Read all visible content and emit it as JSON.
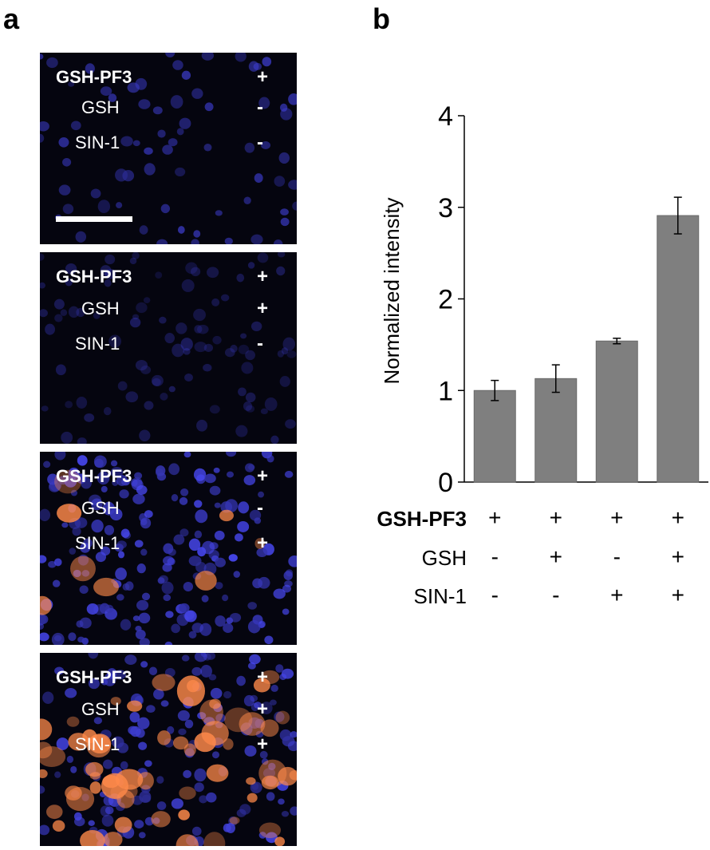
{
  "panel_labels": {
    "a": "a",
    "b": "b"
  },
  "micrographs": [
    {
      "rows": [
        {
          "label": "GSH-PF3",
          "sign": "+"
        },
        {
          "label": "GSH",
          "sign": "-"
        },
        {
          "label": "SIN-1",
          "sign": "-"
        }
      ],
      "scale_bar": true
    },
    {
      "rows": [
        {
          "label": "GSH-PF3",
          "sign": "+"
        },
        {
          "label": "GSH",
          "sign": "+"
        },
        {
          "label": "SIN-1",
          "sign": "-"
        }
      ],
      "scale_bar": false
    },
    {
      "rows": [
        {
          "label": "GSH-PF3",
          "sign": "+"
        },
        {
          "label": "GSH",
          "sign": "-"
        },
        {
          "label": "SIN-1",
          "sign": "+"
        }
      ],
      "scale_bar": false
    },
    {
      "rows": [
        {
          "label": "GSH-PF3",
          "sign": "+"
        },
        {
          "label": "GSH",
          "sign": "+"
        },
        {
          "label": "SIN-1",
          "sign": "+"
        }
      ],
      "scale_bar": false
    }
  ],
  "colors": {
    "bar": "#7f7f7f",
    "nuclei": "#2a2ae0",
    "probe": "#ff8a4a",
    "background": "#05050f"
  },
  "chart_data": {
    "type": "bar",
    "ylabel": "Normalized intensity",
    "ylim": [
      0,
      4
    ],
    "yticks": [
      "0",
      "1",
      "2",
      "3",
      "4"
    ],
    "values": [
      1.0,
      1.13,
      1.54,
      2.91
    ],
    "errors": [
      0.11,
      0.15,
      0.03,
      0.2
    ],
    "grid": false,
    "conditions": [
      {
        "label": "GSH-PF3",
        "bold": true,
        "signs": [
          "+",
          "+",
          "+",
          "+"
        ]
      },
      {
        "label": "GSH",
        "bold": false,
        "signs": [
          "-",
          "+",
          "-",
          "+"
        ]
      },
      {
        "label": "SIN-1",
        "bold": false,
        "signs": [
          "-",
          "-",
          "+",
          "+"
        ]
      }
    ]
  }
}
